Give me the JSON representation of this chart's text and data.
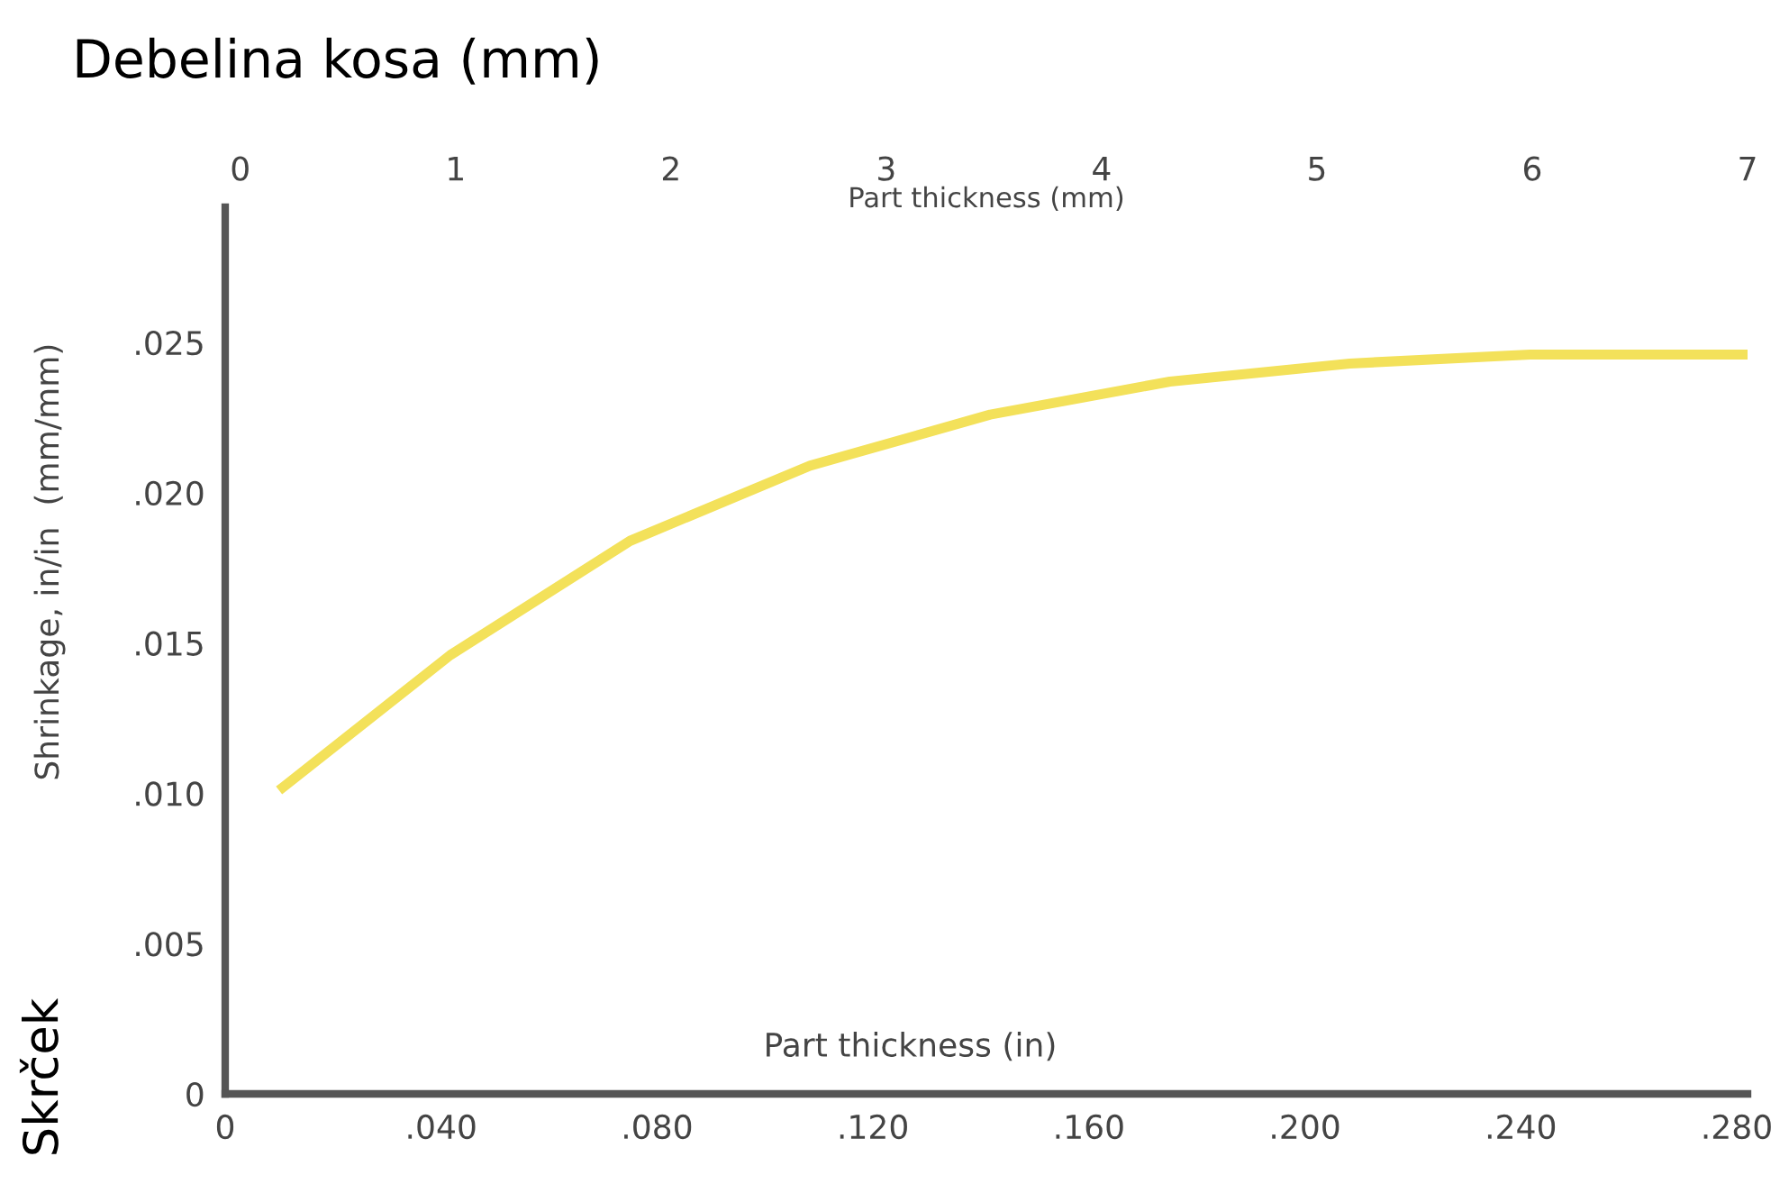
{
  "chart_data": {
    "type": "line",
    "title": "Debelina kosa (mm)",
    "x2label": "Part thickness (mm)",
    "xlabel": "Part thickness (in)",
    "ylabel": "Shrinkage, in/in  (mm/mm)",
    "annotations": [
      "Skrček"
    ],
    "x": [
      0.0107,
      0.0417,
      0.075,
      0.1083,
      0.1417,
      0.175,
      0.2083,
      0.2417,
      0.2817
    ],
    "series": [
      {
        "color": "#f3e15a",
        "values": [
          0.0102,
          0.0146,
          0.0184,
          0.0209,
          0.0226,
          0.0237,
          0.0243,
          0.0246,
          0.0246
        ]
      }
    ],
    "xlim": [
      0,
      0.282
    ],
    "xticks": [
      0,
      {
        "value": 0.04,
        "label": ".040"
      },
      {
        "value": 0.08,
        "label": ".080"
      },
      {
        "value": 0.12,
        "label": ".120"
      },
      {
        "value": 0.16,
        "label": ".160"
      },
      {
        "value": 0.2,
        "label": ".200"
      },
      {
        "value": 0.24,
        "label": ".240"
      },
      {
        "value": 0.28,
        "label": ".280"
      }
    ],
    "x2lim": [
      -0.07,
      7
    ],
    "x2ticks": [
      0,
      1,
      2,
      3,
      4,
      5,
      6,
      7
    ],
    "ylim": [
      0,
      0.0295
    ],
    "yticks": [
      0,
      {
        "value": 0.005,
        "label": ".005"
      },
      {
        "value": 0.01,
        "label": ".010"
      },
      {
        "value": 0.015,
        "label": ".015"
      },
      {
        "value": 0.02,
        "label": ".020"
      },
      {
        "value": 0.025,
        "label": ".025"
      }
    ],
    "grid": false,
    "marker": "none",
    "line_style": "solid"
  }
}
